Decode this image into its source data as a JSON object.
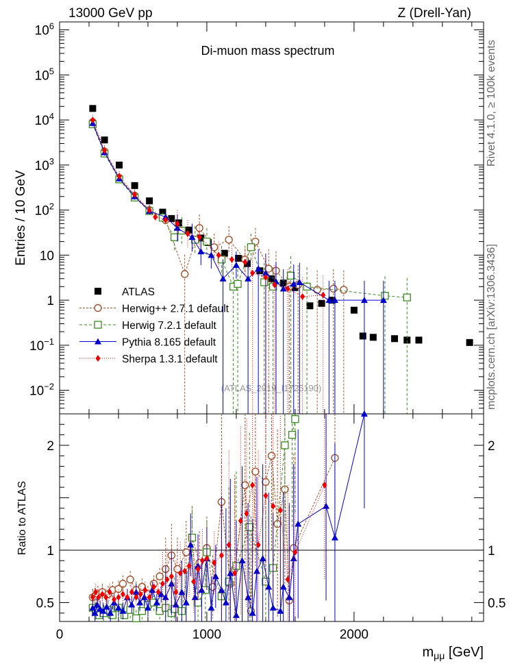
{
  "header": {
    "left": "13000 GeV pp",
    "right": "Z (Drell-Yan)"
  },
  "side_text": {
    "rivet": "Rivet 4.1.0, ≥ 100k events",
    "mcplots": "mcplots.cern.ch [arXiv:1306.3436]"
  },
  "colors": {
    "ATLAS": "#000000",
    "Herwig++": "#a0522d",
    "Herwig7": "#3a8a1f",
    "Pythia": "#0000cc",
    "Sherpa": "#ee0000"
  },
  "chart_data": [
    {
      "type": "scatter",
      "title": "Di-muon mass spectrum",
      "watermark": "(ATLAS_2019_I1725190)",
      "xlabel_main": "m",
      "xlabel_sub": "μμ",
      "xlabel_unit": " [GeV]",
      "ylabel": "Entries / 10 GeV",
      "yscale": "log",
      "xlim": [
        0,
        2880
      ],
      "ylim": [
        0.003,
        1500000
      ],
      "xticks": [
        0,
        1000,
        2000
      ],
      "yticks": [
        {
          "v": 0.01,
          "base": "10",
          "exp": "−2"
        },
        {
          "v": 0.1,
          "base": "10",
          "exp": "−1"
        },
        {
          "v": 1,
          "base": "1",
          "exp": ""
        },
        {
          "v": 10,
          "base": "10",
          "exp": ""
        },
        {
          "v": 100,
          "base": "10",
          "exp": "2"
        },
        {
          "v": 1000,
          "base": "10",
          "exp": "3"
        },
        {
          "v": 10000,
          "base": "10",
          "exp": "4"
        },
        {
          "v": 100000,
          "base": "10",
          "exp": "5"
        },
        {
          "v": 1000000,
          "base": "10",
          "exp": "6"
        }
      ],
      "legend": [
        {
          "label": "ATLAS",
          "marker": "square",
          "key": "ATLAS"
        },
        {
          "label": "Herwig++ 2.7.1 default",
          "marker": "circle-open",
          "key": "Herwig++"
        },
        {
          "label": "Herwig 7.2.1 default",
          "marker": "square-open",
          "key": "Herwig7"
        },
        {
          "label": "Pythia 8.165 default",
          "marker": "triangle",
          "key": "Pythia"
        },
        {
          "label": "Sherpa 1.3.1 default",
          "marker": "diamond",
          "key": "Sherpa"
        }
      ],
      "series": [
        {
          "name": "ATLAS",
          "x": [
            225,
            305,
            405,
            510,
            610,
            700,
            760,
            810,
            880,
            960,
            1010,
            1120,
            1215,
            1275,
            1360,
            1440,
            1520,
            1600,
            1700,
            1780,
            1850,
            2000,
            2060,
            2130,
            2275,
            2360,
            2440,
            2785
          ],
          "y": [
            18000,
            3600,
            1000,
            350,
            160,
            90,
            65,
            52,
            36,
            24,
            19,
            11,
            8.5,
            6.5,
            4.5,
            3.0,
            2.4,
            1.9,
            0.75,
            0.85,
            1.0,
            0.6,
            0.16,
            0.15,
            0.14,
            0.13,
            0.13,
            0.115
          ]
        },
        {
          "name": "Herwig++",
          "x": [
            225,
            305,
            405,
            510,
            610,
            720,
            850,
            950,
            1050,
            1150,
            1260,
            1330,
            1420,
            1470,
            1560,
            1620,
            1750,
            1860,
            1930
          ],
          "y": [
            9000,
            2000,
            520,
            210,
            100,
            60,
            3.8,
            40,
            15,
            22,
            8.0,
            20,
            5.0,
            4.5,
            2.0,
            2.2,
            1.7,
            1.8,
            1.7
          ]
        },
        {
          "name": "Herwig7",
          "x": [
            225,
            305,
            405,
            510,
            610,
            700,
            780,
            830,
            920,
            1000,
            1100,
            1180,
            1210,
            1300,
            1390,
            1450,
            1570,
            1680,
            2210,
            2360
          ],
          "y": [
            8000,
            1800,
            480,
            190,
            95,
            68,
            25,
            35,
            22,
            20,
            8.0,
            2.0,
            2.3,
            15,
            2.5,
            2.0,
            3.5,
            2.0,
            1.25,
            1.15
          ]
        },
        {
          "name": "Pythia",
          "x": [
            225,
            305,
            405,
            510,
            610,
            720,
            800,
            900,
            960,
            1030,
            1110,
            1200,
            1280,
            1350,
            1400,
            1470,
            1520,
            1590,
            1630,
            1830,
            1870,
            2070,
            2200
          ],
          "y": [
            8500,
            1900,
            500,
            200,
            95,
            70,
            40,
            25,
            12,
            10,
            3.0,
            6.0,
            3.0,
            5.0,
            4.0,
            2.6,
            1.8,
            2.3,
            2.5,
            1.0,
            1.0,
            1.0,
            1.0
          ]
        },
        {
          "name": "Sherpa",
          "x": [
            225,
            305,
            405,
            510,
            610,
            650,
            720,
            800,
            870,
            950,
            1080,
            1170,
            1260,
            1310,
            1400,
            1460,
            1550,
            1650,
            1790
          ],
          "y": [
            10000,
            2100,
            560,
            220,
            100,
            70,
            60,
            50,
            30,
            25,
            10,
            8.0,
            7.0,
            4.0,
            3.2,
            2.2,
            1.8,
            1.2,
            1.3
          ]
        }
      ]
    },
    {
      "type": "scatter",
      "ylabel": "Ratio to ATLAS",
      "xlim": [
        0,
        2880
      ],
      "ylim": [
        0.32,
        2.3
      ],
      "yticks": [
        0.5,
        1,
        2
      ],
      "reference_line": 1,
      "series": [
        {
          "name": "Herwig++",
          "x": [
            225,
            240,
            260,
            290,
            330,
            360,
            400,
            430,
            480,
            520,
            560,
            600,
            640,
            680,
            720,
            760,
            800,
            860,
            900,
            950,
            1000,
            1040,
            1100,
            1160,
            1190,
            1260,
            1300,
            1330,
            1400,
            1440,
            1480,
            1530,
            1560,
            1590,
            1870
          ],
          "y": [
            0.55,
            0.56,
            0.58,
            0.6,
            0.58,
            0.62,
            0.63,
            0.68,
            0.72,
            0.62,
            0.65,
            0.58,
            0.68,
            0.75,
            0.82,
            0.95,
            0.82,
            0.98,
            1.12,
            0.88,
            1.02,
            0.65,
            1.46,
            0.68,
            0.82,
            1.62,
            0.42,
            1.75,
            1.65,
            1.9,
            1.25,
            1.58,
            0.52,
            1.02,
            1.88
          ]
        },
        {
          "name": "Herwig7",
          "x": [
            225,
            245,
            270,
            300,
            330,
            360,
            400,
            440,
            480,
            520,
            560,
            600,
            640,
            680,
            720,
            760,
            780,
            830,
            900,
            940,
            990,
            1000,
            1100,
            1150,
            1200,
            1290,
            1400,
            1450,
            1530,
            1580,
            1600
          ],
          "y": [
            0.45,
            0.42,
            0.38,
            0.4,
            0.43,
            0.38,
            0.45,
            0.38,
            0.43,
            0.35,
            0.42,
            0.48,
            0.5,
            0.42,
            0.45,
            0.4,
            0.44,
            0.42,
            1.12,
            0.5,
            0.62,
            0.98,
            0.56,
            0.7,
            0.85,
            1.22,
            0.7,
            0.83,
            2.0,
            2.1,
            2.25
          ]
        },
        {
          "name": "Pythia",
          "x": [
            225,
            240,
            255,
            275,
            295,
            320,
            345,
            370,
            400,
            430,
            460,
            490,
            520,
            545,
            575,
            600,
            630,
            660,
            690,
            720,
            760,
            790,
            830,
            860,
            890,
            920,
            940,
            965,
            1000,
            1030,
            1060,
            1100,
            1130,
            1160,
            1200,
            1240,
            1280,
            1310,
            1340,
            1380,
            1420,
            1450,
            1500,
            1520,
            1560,
            1590,
            1620,
            1810,
            1870,
            2070
          ],
          "y": [
            0.45,
            0.4,
            0.48,
            0.44,
            0.42,
            0.46,
            0.4,
            0.5,
            0.45,
            0.42,
            0.55,
            0.48,
            0.6,
            0.5,
            0.55,
            0.45,
            0.62,
            0.5,
            0.58,
            0.55,
            0.68,
            0.48,
            0.6,
            0.5,
            1.05,
            0.55,
            0.85,
            0.62,
            0.92,
            0.45,
            0.75,
            0.62,
            0.5,
            0.78,
            0.38,
            0.9,
            0.55,
            0.4,
            0.8,
            0.92,
            0.65,
            0.45,
            0.42,
            0.65,
            0.55,
            0.92,
            1.25,
            1.42,
            1.12,
            2.3
          ]
        },
        {
          "name": "Sherpa",
          "x": [
            225,
            245,
            265,
            290,
            315,
            340,
            370,
            400,
            430,
            460,
            490,
            520,
            550,
            580,
            610,
            640,
            670,
            700,
            730,
            760,
            790,
            820,
            850,
            880,
            910,
            940,
            970,
            1000,
            1050,
            1100,
            1150,
            1190,
            1230,
            1270,
            1310,
            1350,
            1400,
            1450,
            1500,
            1550,
            1600,
            1800
          ],
          "y": [
            0.55,
            0.6,
            0.55,
            0.58,
            0.55,
            0.6,
            0.53,
            0.55,
            0.58,
            0.55,
            0.6,
            0.55,
            0.58,
            0.62,
            0.55,
            0.65,
            0.6,
            0.68,
            0.72,
            0.75,
            0.6,
            0.78,
            0.8,
            0.85,
            0.7,
            0.82,
            0.9,
            0.92,
            0.88,
            0.95,
            1.05,
            0.78,
            1.28,
            1.35,
            1.62,
            1.05,
            1.52,
            1.42,
            1.38,
            0.72,
            0.98,
            1.62
          ]
        }
      ]
    }
  ]
}
